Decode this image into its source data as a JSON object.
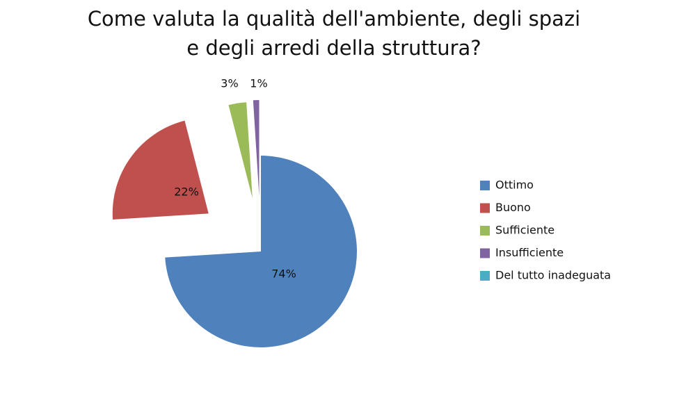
{
  "chart_data": {
    "type": "pie",
    "title": "Come valuta la qualità dell'ambiente, degli spazi\ne degli arredi della struttura?",
    "categories": [
      "Ottimo",
      "Buono",
      "Sufficiente",
      "Insufficiente",
      "Del tutto inadeguata"
    ],
    "values": [
      74,
      22,
      3,
      1,
      0
    ],
    "value_labels": [
      "74%",
      "22%",
      "3%",
      "1%",
      null
    ],
    "colors": [
      "#4f81bd",
      "#c0504d",
      "#9bbb59",
      "#8064a2",
      "#4bacc6"
    ],
    "legend": "right"
  }
}
